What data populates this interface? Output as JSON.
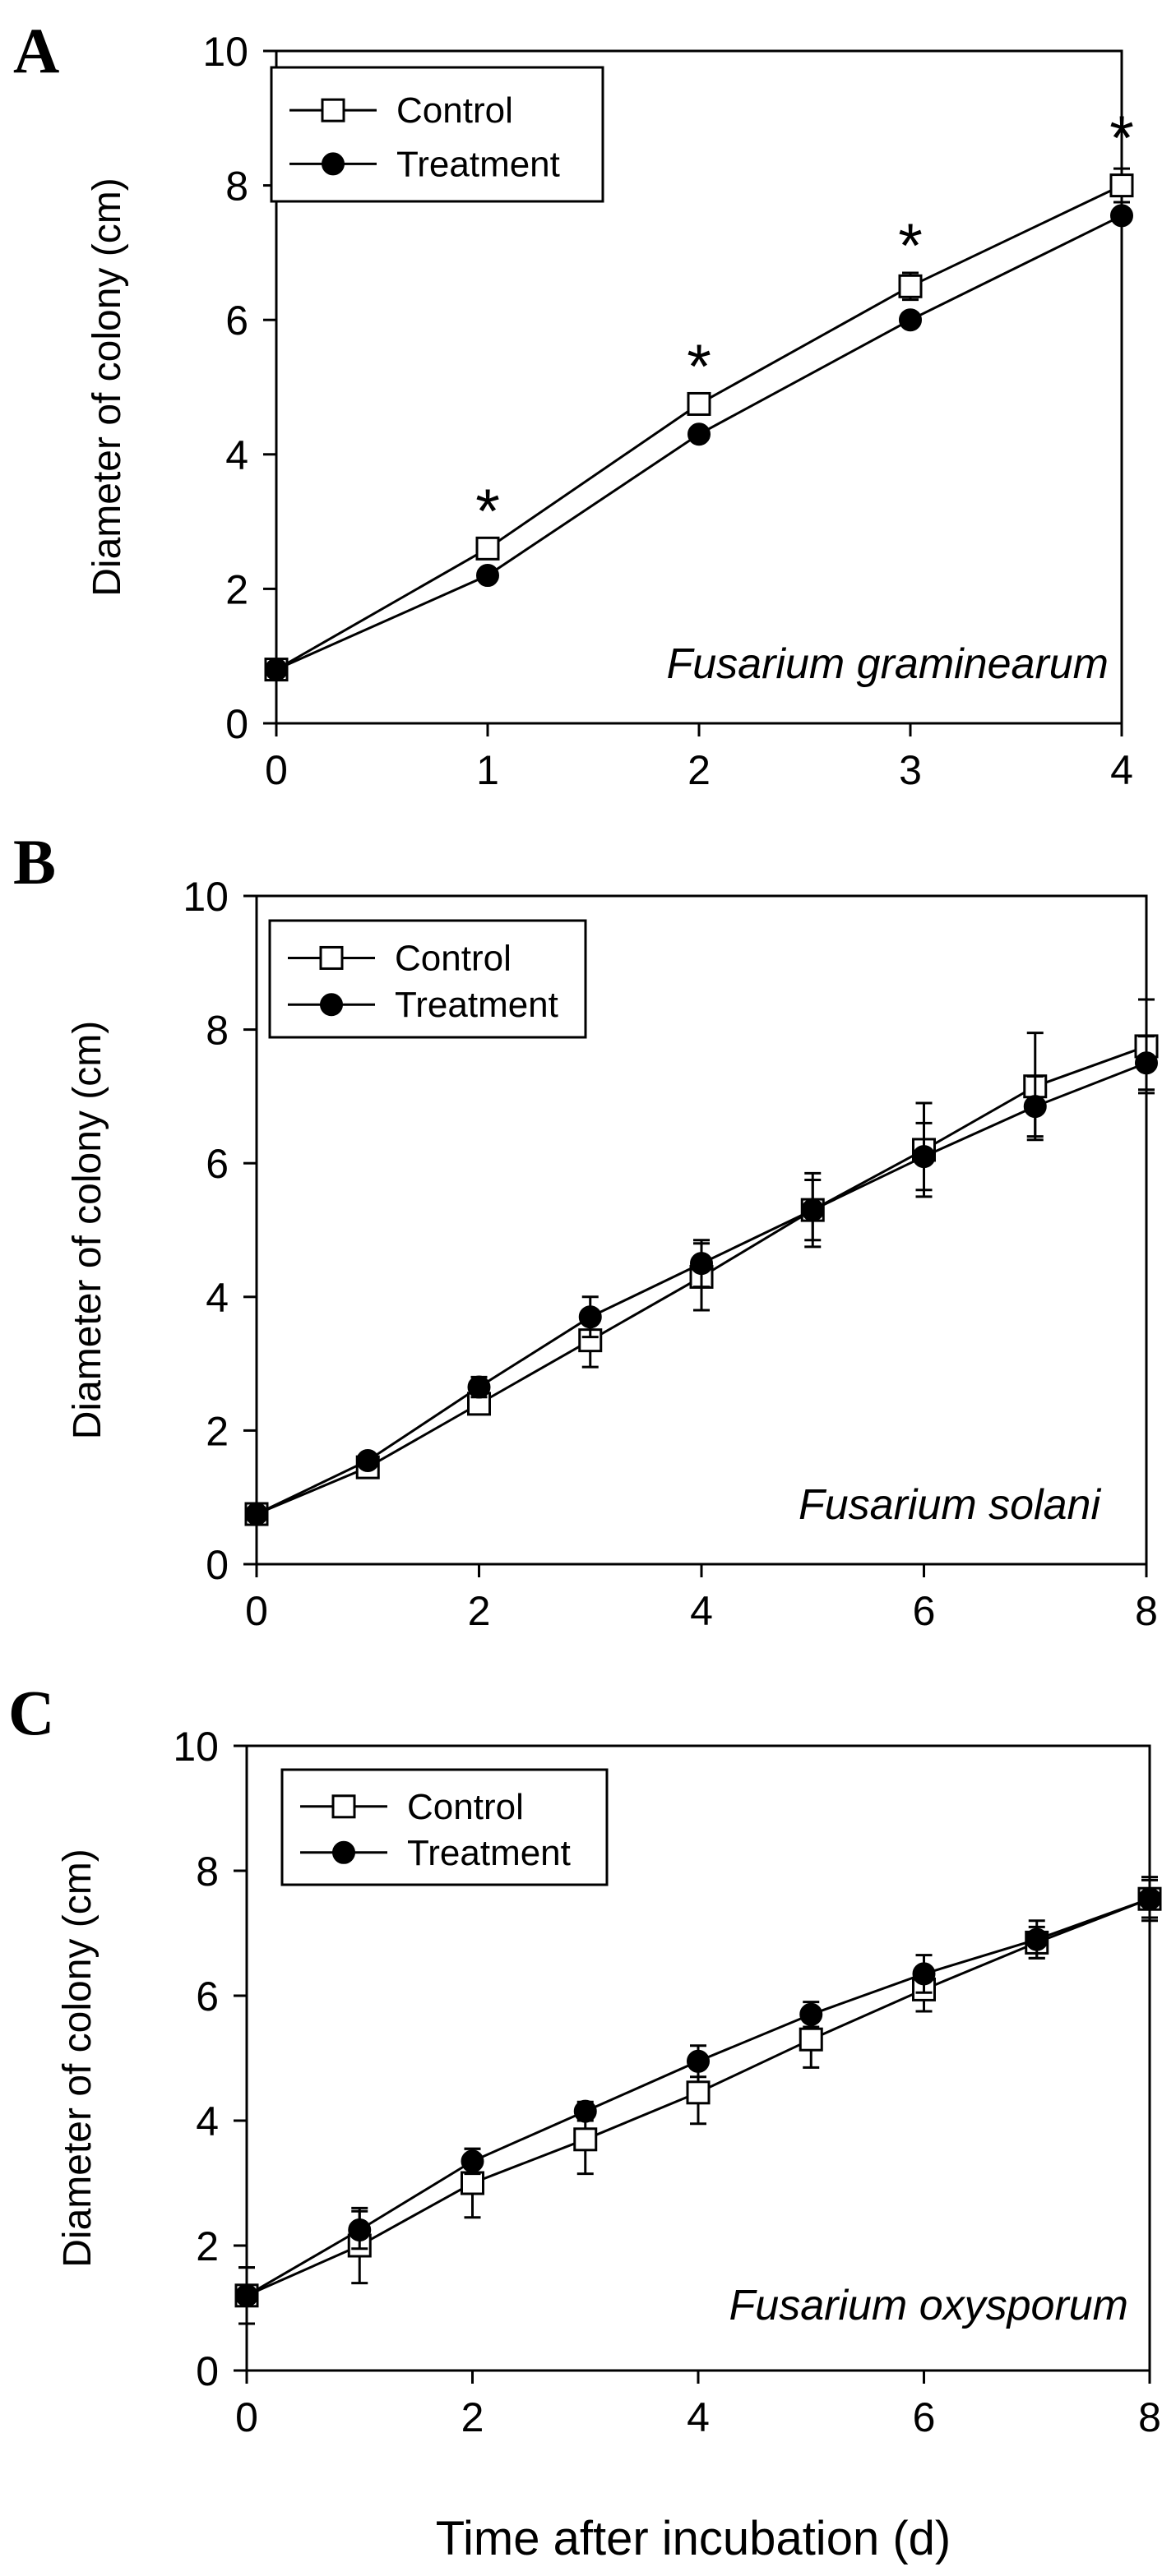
{
  "figure": {
    "xlabel": "Time after incubation (d)",
    "colors": {
      "line": "#000000",
      "control_fill": "#ffffff",
      "treatment_fill": "#000000"
    }
  },
  "chart_data": [
    {
      "type": "line",
      "panel_label": "A",
      "annotation": "Fusarium graminearum",
      "ylabel": "Diameter of colony (cm)",
      "xlabel": "",
      "xlim": [
        0,
        4
      ],
      "ylim": [
        0,
        10
      ],
      "xticks": [
        0,
        1,
        2,
        3,
        4
      ],
      "yticks": [
        0,
        2,
        4,
        6,
        8,
        10
      ],
      "legend": {
        "position": "top-left",
        "entries": [
          "Control",
          "Treatment"
        ]
      },
      "x": [
        0,
        1,
        2,
        3,
        4
      ],
      "series": [
        {
          "name": "Control",
          "marker": "open-square",
          "values": [
            0.8,
            2.6,
            4.75,
            6.5,
            8.0
          ],
          "errors": [
            0.05,
            0.15,
            0.15,
            0.2,
            0.25
          ]
        },
        {
          "name": "Treatment",
          "marker": "filled-circle",
          "values": [
            0.8,
            2.2,
            4.3,
            6.0,
            7.55
          ],
          "errors": [
            0.05,
            0.08,
            0.1,
            0.1,
            0.1
          ]
        }
      ],
      "significance": [
        {
          "x": 1,
          "y": 3.35,
          "label": "*"
        },
        {
          "x": 2,
          "y": 5.5,
          "label": "*"
        },
        {
          "x": 3,
          "y": 7.3,
          "label": "*"
        },
        {
          "x": 4,
          "y": 8.9,
          "label": "*"
        }
      ]
    },
    {
      "type": "line",
      "panel_label": "B",
      "annotation": "Fusarium solani",
      "ylabel": "Diameter of colony (cm)",
      "xlabel": "",
      "xlim": [
        0,
        8
      ],
      "ylim": [
        0,
        10
      ],
      "xticks": [
        0,
        2,
        4,
        6,
        8
      ],
      "yticks": [
        0,
        2,
        4,
        6,
        8,
        10
      ],
      "legend": {
        "position": "top-left",
        "entries": [
          "Control",
          "Treatment"
        ]
      },
      "x": [
        0,
        1,
        2,
        3,
        4,
        5,
        6,
        7,
        8
      ],
      "series": [
        {
          "name": "Control",
          "marker": "open-square",
          "values": [
            0.75,
            1.45,
            2.4,
            3.35,
            4.3,
            5.3,
            6.2,
            7.15,
            7.75
          ],
          "errors": [
            0.05,
            0.1,
            0.15,
            0.4,
            0.5,
            0.55,
            0.7,
            0.8,
            0.7
          ]
        },
        {
          "name": "Treatment",
          "marker": "filled-circle",
          "values": [
            0.75,
            1.55,
            2.65,
            3.7,
            4.5,
            5.3,
            6.1,
            6.85,
            7.5
          ],
          "errors": [
            0.05,
            0.1,
            0.15,
            0.3,
            0.35,
            0.45,
            0.5,
            0.45,
            0.4
          ]
        }
      ],
      "significance": []
    },
    {
      "type": "line",
      "panel_label": "C",
      "annotation": "Fusarium oxysporum",
      "ylabel": "Diameter of colony (cm)",
      "xlabel": "Time after incubation (d)",
      "xlim": [
        0,
        8
      ],
      "ylim": [
        0,
        10
      ],
      "xticks": [
        0,
        2,
        4,
        6,
        8
      ],
      "yticks": [
        0,
        2,
        4,
        6,
        8,
        10
      ],
      "legend": {
        "position": "top-left",
        "entries": [
          "Control",
          "Treatment"
        ]
      },
      "x": [
        0,
        1,
        2,
        3,
        4,
        5,
        6,
        7,
        8
      ],
      "series": [
        {
          "name": "Control",
          "marker": "open-square",
          "values": [
            1.2,
            2.0,
            3.0,
            3.7,
            4.45,
            5.3,
            6.1,
            6.85,
            7.55
          ],
          "errors": [
            0.45,
            0.6,
            0.55,
            0.55,
            0.5,
            0.45,
            0.35,
            0.25,
            0.3
          ]
        },
        {
          "name": "Treatment",
          "marker": "filled-circle",
          "values": [
            1.2,
            2.25,
            3.35,
            4.15,
            4.95,
            5.7,
            6.35,
            6.9,
            7.55
          ],
          "errors": [
            0.45,
            0.3,
            0.2,
            0.15,
            0.25,
            0.2,
            0.3,
            0.3,
            0.35
          ]
        }
      ],
      "significance": []
    }
  ]
}
